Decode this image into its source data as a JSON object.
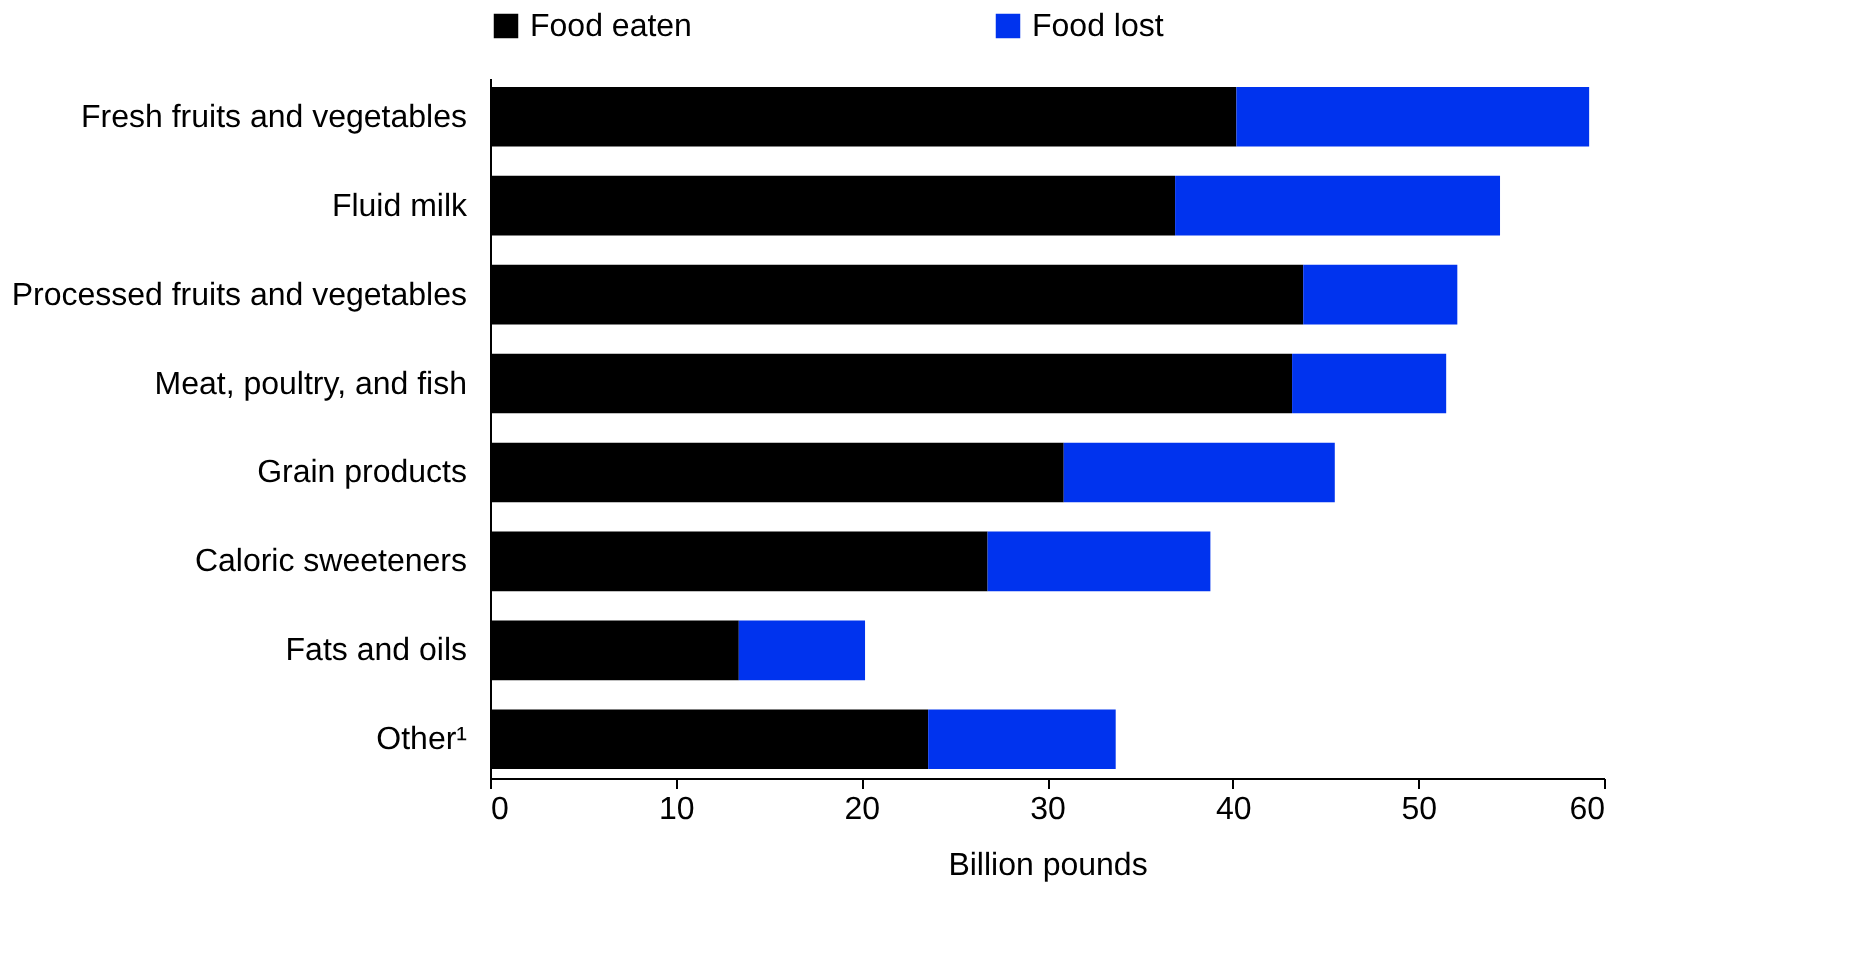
{
  "chart_data": {
    "type": "bar",
    "orientation": "horizontal",
    "stacked": true,
    "xlabel": "Billion pounds",
    "categories": [
      "Fresh fruits and vegetables",
      "Fluid milk",
      "Processed fruits and vegetables",
      "Meat, poultry, and fish",
      "Grain products",
      "Caloric sweeteners",
      "Fats and oils",
      "Other¹"
    ],
    "series": [
      {
        "name": "Food eaten",
        "color": "#000000",
        "values": [
          40.2,
          36.9,
          43.8,
          43.2,
          30.9,
          26.8,
          13.4,
          23.6
        ]
      },
      {
        "name": "Food lost",
        "color": "#0033ee",
        "values": [
          19.0,
          17.5,
          8.3,
          8.3,
          14.6,
          12.0,
          6.8,
          10.1
        ]
      }
    ],
    "xlim": [
      0,
      60
    ],
    "xticks": [
      0,
      10,
      20,
      30,
      40,
      50,
      60
    ],
    "grid": false,
    "legend": "top"
  }
}
